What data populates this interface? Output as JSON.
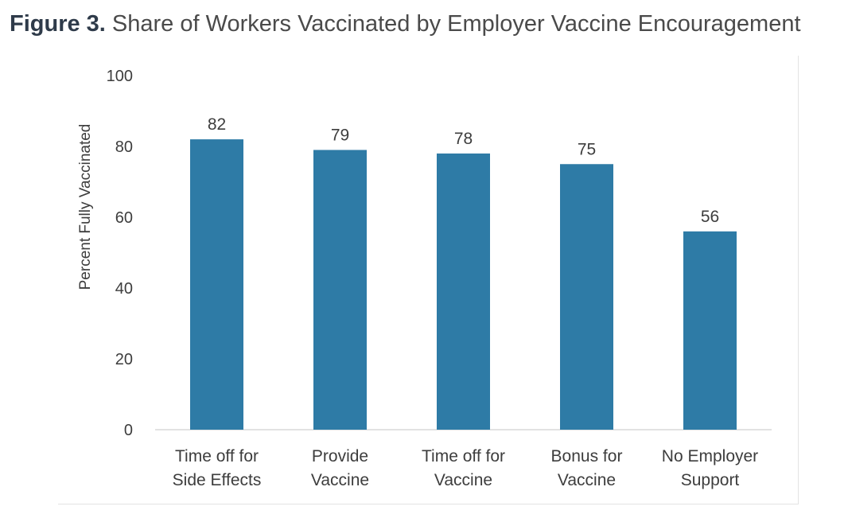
{
  "figure": {
    "label": "Figure 3.",
    "title": "Share of Workers Vaccinated by Employer Vaccine Encouragement"
  },
  "chart_data": {
    "type": "bar",
    "title": "Share of Workers Vaccinated by Employer Vaccine Encouragement",
    "xlabel": "",
    "ylabel": "Percent Fully Vaccinated",
    "ylim": [
      0,
      100
    ],
    "yticks": [
      0,
      20,
      40,
      60,
      80,
      100
    ],
    "categories": [
      [
        "Time off for",
        "Side Effects"
      ],
      [
        "Provide",
        "Vaccine"
      ],
      [
        "Time off for",
        "Vaccine"
      ],
      [
        "Bonus for",
        "Vaccine"
      ],
      [
        "No Employer",
        "Support"
      ]
    ],
    "values": [
      82,
      79,
      78,
      75,
      56
    ],
    "data_labels": true,
    "bar_color": "#2e7ba6",
    "grid": false,
    "legend": "none"
  }
}
